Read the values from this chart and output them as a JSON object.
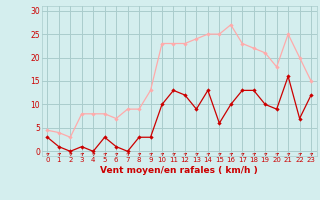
{
  "x": [
    0,
    1,
    2,
    3,
    4,
    5,
    6,
    7,
    8,
    9,
    10,
    11,
    12,
    13,
    14,
    15,
    16,
    17,
    18,
    19,
    20,
    21,
    22,
    23
  ],
  "wind_avg": [
    3,
    1,
    0,
    1,
    0,
    3,
    1,
    0,
    3,
    3,
    10,
    13,
    12,
    9,
    13,
    6,
    10,
    13,
    13,
    10,
    9,
    16,
    7,
    12
  ],
  "wind_gust": [
    4.5,
    4,
    3,
    8,
    8,
    8,
    7,
    9,
    9,
    13,
    23,
    23,
    23,
    24,
    25,
    25,
    27,
    23,
    22,
    21,
    18,
    25,
    20,
    15
  ],
  "wind_avg_color": "#cc0000",
  "wind_gust_color": "#ffaaaa",
  "bg_color": "#d4eeee",
  "grid_color": "#aacccc",
  "xlabel": "Vent moyen/en rafales ( km/h )",
  "xlabel_color": "#cc0000",
  "tick_color": "#cc0000",
  "ylim": [
    -1,
    31
  ],
  "yticks": [
    0,
    5,
    10,
    15,
    20,
    25,
    30
  ],
  "tick_fontsize": 5.5,
  "xlabel_fontsize": 6.5
}
